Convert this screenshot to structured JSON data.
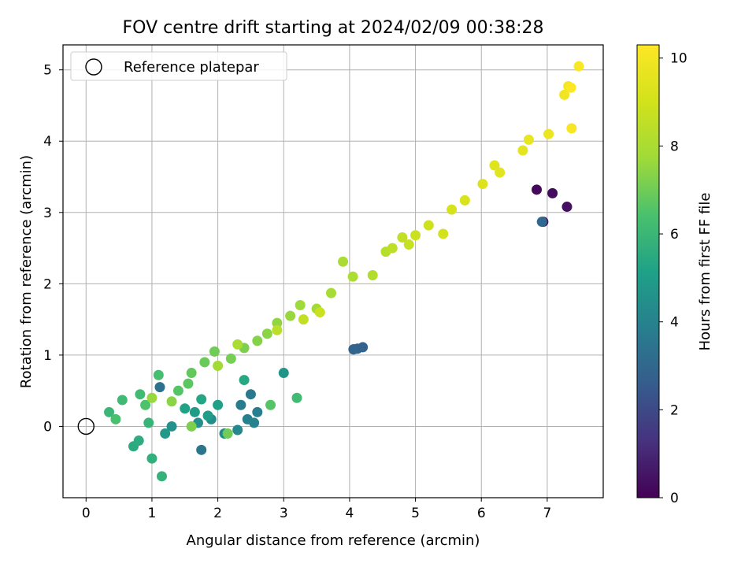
{
  "chart_data": {
    "type": "scatter",
    "title": "FOV centre drift starting at 2024/02/09 00:38:28",
    "xlabel": "Angular distance from reference (arcmin)",
    "ylabel": "Rotation from reference (arcmin)",
    "xlim": [
      -0.35,
      7.85
    ],
    "ylim": [
      -1.0,
      5.35
    ],
    "xticks": [
      "0",
      "1",
      "2",
      "3",
      "4",
      "5",
      "6",
      "7"
    ],
    "yticks": [
      "0",
      "1",
      "2",
      "3",
      "4",
      "5"
    ],
    "grid": true,
    "legend": {
      "position": "top-left",
      "entries": [
        "Reference platepar"
      ]
    },
    "reference_point": {
      "x": 0,
      "y": 0
    },
    "colorbar": {
      "label": "Hours from first FF file",
      "range": [
        0,
        10.3
      ],
      "ticks": [
        "0",
        "2",
        "4",
        "6",
        "8",
        "10"
      ],
      "colormap": "viridis"
    },
    "series": [
      {
        "hours": [
          0.2,
          0.3,
          0.4,
          0.5,
          2.6,
          2.7,
          2.8,
          2.9,
          3.0,
          3.6,
          3.7,
          3.8,
          3.9,
          4.0,
          4.2,
          4.3,
          4.4,
          4.5,
          4.6,
          4.8,
          4.9,
          5.0,
          5.1,
          5.2,
          5.3,
          5.5,
          5.6,
          5.7,
          5.8,
          5.9,
          6.0,
          6.1,
          6.2,
          6.3,
          6.4,
          6.5,
          6.6,
          6.7,
          6.8,
          6.9,
          7.0,
          7.1,
          7.2,
          7.3,
          7.4,
          7.5,
          7.6,
          7.7,
          7.8,
          7.9,
          8.0,
          8.1,
          8.2,
          8.3,
          8.5,
          8.6,
          8.7,
          8.8,
          8.9,
          9.0,
          9.1,
          9.2,
          9.3,
          9.4,
          9.5,
          9.6,
          9.7,
          9.8,
          9.9,
          10.0,
          10.1,
          10.2,
          10.3,
          4.7,
          3.5,
          3.4,
          5.4,
          6.2,
          6.6,
          7.0,
          7.2,
          7.4,
          7.6,
          7.8,
          8.0,
          8.4,
          8.6,
          8.8
        ],
        "x": [
          6.84,
          7.08,
          7.3,
          6.94,
          4.06,
          4.12,
          4.2,
          4.06,
          6.92,
          2.5,
          2.35,
          2.6,
          2.45,
          2.55,
          2.3,
          2.1,
          1.9,
          1.7,
          1.3,
          1.2,
          1.65,
          1.85,
          2.0,
          1.5,
          1.75,
          0.72,
          0.8,
          1.0,
          1.15,
          0.95,
          0.35,
          0.55,
          0.82,
          1.1,
          0.45,
          0.9,
          1.4,
          1.55,
          1.6,
          1.8,
          1.95,
          2.2,
          2.4,
          2.6,
          2.75,
          2.9,
          3.1,
          3.25,
          3.5,
          3.72,
          3.9,
          4.05,
          4.35,
          4.55,
          4.65,
          4.8,
          4.9,
          5.0,
          5.2,
          5.42,
          5.55,
          5.75,
          6.02,
          6.2,
          6.28,
          6.63,
          6.72,
          7.02,
          7.26,
          7.32,
          7.37,
          7.48,
          7.36,
          3.0,
          1.75,
          1.12,
          2.4,
          3.2,
          2.8,
          2.15,
          1.6,
          1.3,
          1.0,
          2.0,
          2.3,
          2.9,
          3.3,
          3.55
        ],
        "y": [
          3.32,
          3.27,
          3.08,
          2.87,
          1.08,
          1.09,
          1.11,
          1.08,
          2.87,
          0.45,
          0.3,
          0.2,
          0.1,
          0.05,
          -0.05,
          -0.1,
          0.1,
          0.05,
          0.0,
          -0.1,
          0.2,
          0.15,
          0.3,
          0.25,
          0.38,
          -0.28,
          -0.2,
          -0.45,
          -0.7,
          0.05,
          0.2,
          0.37,
          0.45,
          0.72,
          0.1,
          0.3,
          0.5,
          0.6,
          0.75,
          0.9,
          1.05,
          0.95,
          1.1,
          1.2,
          1.3,
          1.45,
          1.55,
          1.7,
          1.65,
          1.87,
          2.31,
          2.1,
          2.12,
          2.45,
          2.5,
          2.65,
          2.55,
          2.68,
          2.82,
          2.7,
          3.04,
          3.17,
          3.4,
          3.66,
          3.56,
          3.87,
          4.02,
          4.1,
          4.65,
          4.77,
          4.18,
          5.05,
          4.75,
          0.75,
          -0.33,
          0.55,
          0.65,
          0.4,
          0.3,
          -0.1,
          0.0,
          0.35,
          0.4,
          0.85,
          1.15,
          1.35,
          1.5,
          1.6
        ]
      }
    ]
  }
}
